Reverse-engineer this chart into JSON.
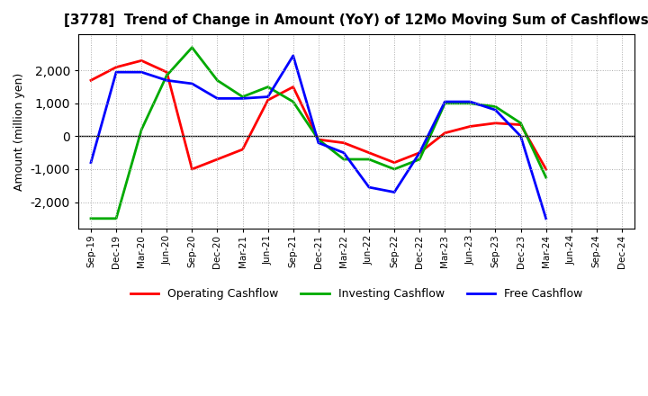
{
  "title": "[3778]  Trend of Change in Amount (YoY) of 12Mo Moving Sum of Cashflows",
  "xlabel": "",
  "ylabel": "Amount (million yen)",
  "x_labels": [
    "Sep-19",
    "Dec-19",
    "Mar-20",
    "Jun-20",
    "Sep-20",
    "Dec-20",
    "Mar-21",
    "Jun-21",
    "Sep-21",
    "Dec-21",
    "Mar-22",
    "Jun-22",
    "Sep-22",
    "Dec-22",
    "Mar-23",
    "Jun-23",
    "Sep-23",
    "Dec-23",
    "Mar-24",
    "Jun-24",
    "Sep-24",
    "Dec-24"
  ],
  "operating": [
    1700,
    2100,
    2300,
    1950,
    -1000,
    -700,
    -400,
    1100,
    1500,
    -100,
    -200,
    -500,
    -800,
    -500,
    100,
    300,
    400,
    350,
    -1000,
    null,
    null,
    null
  ],
  "investing": [
    -2500,
    -2500,
    200,
    1850,
    2700,
    1700,
    1200,
    1500,
    1050,
    -100,
    -700,
    -700,
    -1000,
    -700,
    1000,
    1000,
    900,
    400,
    -1250,
    null,
    null,
    null
  ],
  "free": [
    -800,
    1950,
    1950,
    1700,
    1600,
    1150,
    1150,
    1200,
    2450,
    -200,
    -500,
    -1550,
    -1700,
    -500,
    1050,
    1050,
    800,
    0,
    -2500,
    null,
    null,
    null
  ],
  "operating_color": "#ff0000",
  "investing_color": "#00aa00",
  "free_color": "#0000ff",
  "ylim": [
    -2800,
    3100
  ],
  "yticks": [
    -2000,
    -1000,
    0,
    1000,
    2000
  ],
  "background_color": "#ffffff",
  "grid_color": "#aaaaaa"
}
